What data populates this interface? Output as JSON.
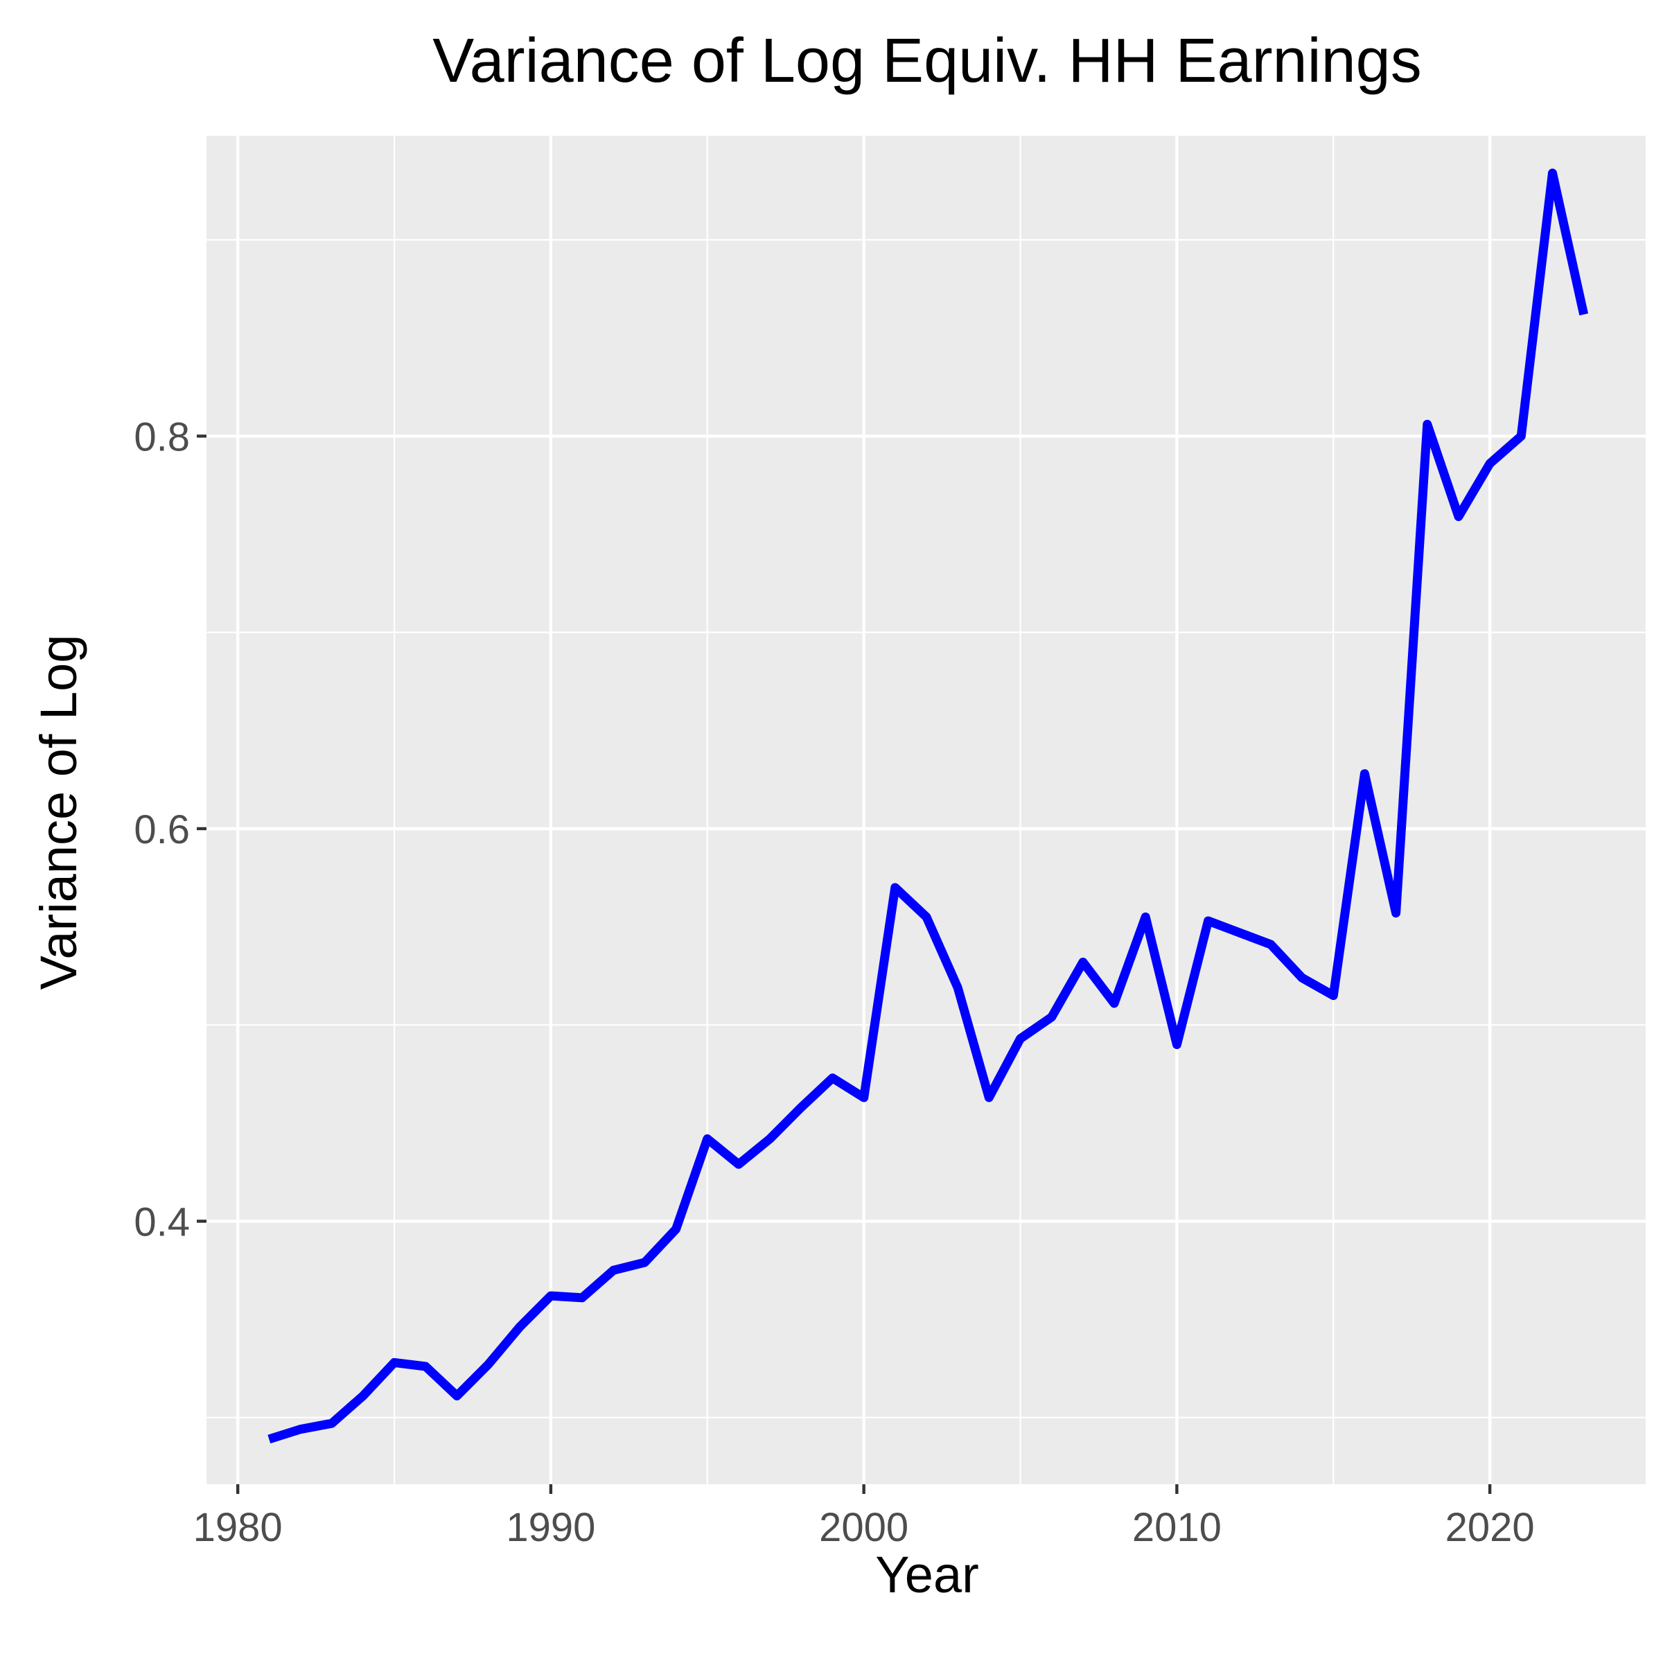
{
  "chart_data": {
    "type": "line",
    "title": "Variance of Log Equiv. HH Earnings",
    "xlabel": "Year",
    "ylabel": "Variance of Log",
    "xlim": [
      1979,
      2025
    ],
    "ylim": [
      0.266,
      0.953
    ],
    "x_ticks": [
      1980,
      1990,
      2000,
      2010,
      2020
    ],
    "y_ticks": [
      0.4,
      0.6,
      0.8
    ],
    "y_tick_labels": [
      "0.4",
      "0.6",
      "0.8"
    ],
    "x_minor_gridlines": [
      1985,
      1995,
      2005,
      2015,
      2025
    ],
    "y_minor_gridlines": [
      0.3,
      0.5,
      0.7,
      0.9
    ],
    "grid": true,
    "background": "#ebebeb",
    "gridline_color": "#ffffff",
    "tick_color": "#333333",
    "series": [
      {
        "color": "#0000ff",
        "x": [
          1981,
          1982,
          1983,
          1984,
          1985,
          1986,
          1987,
          1988,
          1989,
          1990,
          1991,
          1992,
          1993,
          1994,
          1995,
          1996,
          1997,
          1998,
          1999,
          2000,
          2001,
          2002,
          2003,
          2004,
          2005,
          2006,
          2007,
          2008,
          2009,
          2010,
          2011,
          2012,
          2013,
          2014,
          2015,
          2016,
          2017,
          2018,
          2019,
          2020,
          2021,
          2022,
          2023
        ],
        "y": [
          0.289,
          0.294,
          0.297,
          0.311,
          0.328,
          0.326,
          0.311,
          0.327,
          0.346,
          0.362,
          0.361,
          0.375,
          0.379,
          0.396,
          0.442,
          0.429,
          0.442,
          0.458,
          0.473,
          0.463,
          0.57,
          0.555,
          0.519,
          0.463,
          0.493,
          0.504,
          0.532,
          0.511,
          0.555,
          0.49,
          0.553,
          0.547,
          0.541,
          0.524,
          0.515,
          0.628,
          0.557,
          0.806,
          0.759,
          0.786,
          0.8,
          0.934,
          0.862
        ]
      }
    ]
  }
}
